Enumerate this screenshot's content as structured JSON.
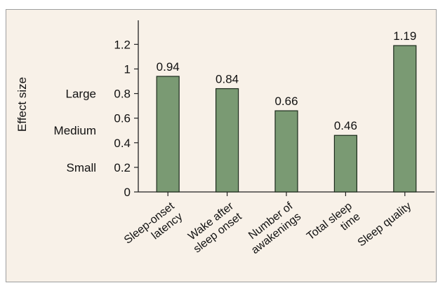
{
  "chart_data": {
    "type": "bar",
    "title": "",
    "xlabel": "",
    "ylabel": "Effect size",
    "categories": [
      [
        "Sleep-onset",
        "latency"
      ],
      [
        "Wake after",
        "sleep onset"
      ],
      [
        "Number of",
        "awakenings"
      ],
      [
        "Total sleep",
        "time"
      ],
      [
        "Sleep quality"
      ]
    ],
    "values": [
      0.94,
      0.84,
      0.66,
      0.46,
      1.19
    ],
    "data_labels": [
      "0.94",
      "0.84",
      "0.66",
      "0.46",
      "1.19"
    ],
    "yticks": [
      0,
      0.2,
      0.4,
      0.6,
      0.8,
      1,
      1.2
    ],
    "ytick_labels": [
      "0",
      "0.2",
      "0.4",
      "0.6",
      "0.8",
      "1",
      "1.2"
    ],
    "ylim": [
      0,
      1.35
    ],
    "effect_size_labels": [
      {
        "text": "Small",
        "value": 0.2
      },
      {
        "text": "Medium",
        "value": 0.5
      },
      {
        "text": "Large",
        "value": 0.8
      }
    ],
    "grid": false,
    "legend": "none",
    "colors": {
      "bar_fill": "#7a9a73",
      "bar_stroke": "#1b2a1b",
      "frame_background": "#f8f1e8"
    }
  }
}
